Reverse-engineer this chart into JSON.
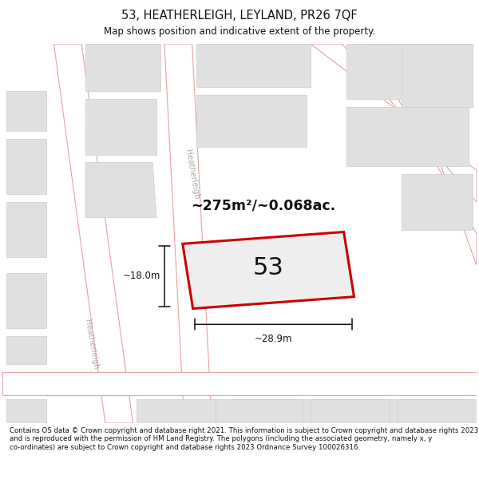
{
  "title_line1": "53, HEATHERLEIGH, LEYLAND, PR26 7QF",
  "title_line2": "Map shows position and indicative extent of the property.",
  "area_text": "~275m²/~0.068ac.",
  "number_label": "53",
  "dim_width": "~28.9m",
  "dim_height": "~18.0m",
  "footer_text": "Contains OS data © Crown copyright and database right 2021. This information is subject to Crown copyright and database rights 2023 and is reproduced with the permission of HM Land Registry. The polygons (including the associated geometry, namely x, y co-ordinates) are subject to Crown copyright and database rights 2023 Ordnance Survey 100026316.",
  "map_bg": "#eeeeee",
  "road_fill": "#ffffff",
  "road_stroke": "#e8a0a0",
  "building_fill": "#e0e0e0",
  "building_edge": "#cccccc",
  "plot_stroke": "#cc0000",
  "plot_fill": "#eeeeee",
  "dim_color": "#111111",
  "title_color": "#111111",
  "footer_color": "#111111",
  "street_label_color": "#aaaaaa",
  "white": "#ffffff"
}
